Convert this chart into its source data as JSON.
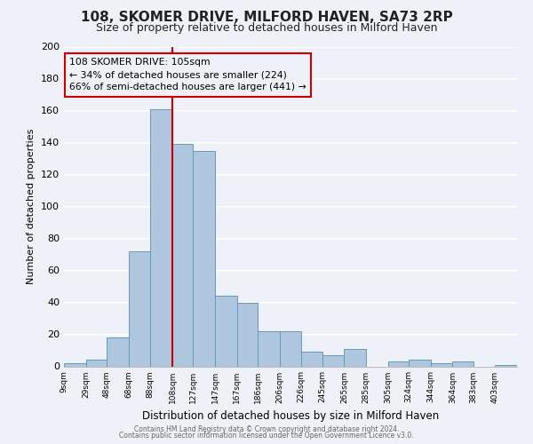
{
  "title": "108, SKOMER DRIVE, MILFORD HAVEN, SA73 2RP",
  "subtitle": "Size of property relative to detached houses in Milford Haven",
  "xlabel": "Distribution of detached houses by size in Milford Haven",
  "ylabel": "Number of detached properties",
  "bin_labels": [
    "9sqm",
    "29sqm",
    "48sqm",
    "68sqm",
    "88sqm",
    "108sqm",
    "127sqm",
    "147sqm",
    "167sqm",
    "186sqm",
    "206sqm",
    "226sqm",
    "245sqm",
    "265sqm",
    "285sqm",
    "305sqm",
    "324sqm",
    "344sqm",
    "364sqm",
    "383sqm",
    "403sqm"
  ],
  "bin_edges": [
    9,
    29,
    48,
    68,
    88,
    108,
    127,
    147,
    167,
    186,
    206,
    226,
    245,
    265,
    285,
    305,
    324,
    344,
    364,
    383,
    403,
    423
  ],
  "bar_heights": [
    2,
    4,
    18,
    72,
    161,
    139,
    135,
    44,
    40,
    22,
    22,
    9,
    7,
    11,
    0,
    3,
    4,
    2,
    3,
    0,
    1
  ],
  "bar_color": "#aec6de",
  "bar_edge_color": "#6699bb",
  "ylim": [
    0,
    200
  ],
  "yticks": [
    0,
    20,
    40,
    60,
    80,
    100,
    120,
    140,
    160,
    180,
    200
  ],
  "vline_x": 108,
  "vline_color": "#cc0000",
  "annotation_title": "108 SKOMER DRIVE: 105sqm",
  "annotation_line1": "← 34% of detached houses are smaller (224)",
  "annotation_line2": "66% of semi-detached houses are larger (441) →",
  "annotation_box_color": "#cc0000",
  "footer1": "Contains HM Land Registry data © Crown copyright and database right 2024.",
  "footer2": "Contains public sector information licensed under the Open Government Licence v3.0.",
  "background_color": "#eef2f8",
  "grid_color": "#ffffff",
  "title_fontsize": 11,
  "subtitle_fontsize": 9
}
